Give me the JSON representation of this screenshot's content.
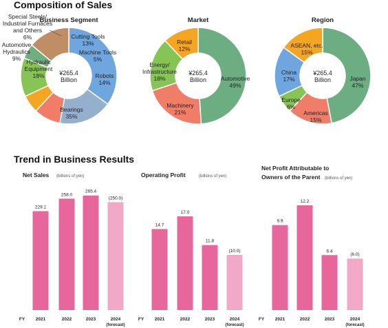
{
  "sections": {
    "composition": "Composition of Sales",
    "trend": "Trend in Business Results"
  },
  "center_label": {
    "value": "¥265.4",
    "unit": "Billion"
  },
  "fy_label": "FY",
  "chart_data": [
    {
      "type": "pie",
      "title": "Business Segment",
      "labels": [
        "Bearings",
        "Hydraulic Equipment",
        "Automotive Hydraulics",
        "Special Steels/ Industrial Furnaces and Others",
        "Cutting Tools",
        "Machine Tools",
        "Robots"
      ],
      "values": [
        35,
        18,
        9,
        6,
        13,
        5,
        14
      ],
      "colors": [
        "#6ea6dd",
        "#94b0cc",
        "#ef7d67",
        "#f4a623",
        "#86c455",
        "#6fae7e",
        "#c08e64"
      ]
    },
    {
      "type": "pie",
      "title": "Market",
      "labels": [
        "Automotive",
        "Machinery",
        "Energy/ Infrastructure",
        "Retail"
      ],
      "values": [
        49,
        21,
        18,
        12
      ],
      "colors": [
        "#6cae82",
        "#ef7d67",
        "#86c455",
        "#f4a623"
      ]
    },
    {
      "type": "pie",
      "title": "Region",
      "labels": [
        "Japan",
        "Americas",
        "Europe",
        "China",
        "ASEAN, etc."
      ],
      "values": [
        47,
        15,
        6,
        17,
        15
      ],
      "colors": [
        "#6cae82",
        "#ef7d67",
        "#86c455",
        "#6ea6dd",
        "#f4a623"
      ]
    },
    {
      "type": "bar",
      "title": "Net Sales",
      "unit": "(billions of yen)",
      "categories": [
        "2021",
        "2022",
        "2023",
        "2024"
      ],
      "category_notes": [
        "",
        "",
        "",
        "(forecast)"
      ],
      "values": [
        229.1,
        258.0,
        265.4,
        250.0
      ],
      "value_labels": [
        "229.1",
        "258.0",
        "265.4",
        "(250.0)"
      ],
      "colors": [
        "#e7669b",
        "#e7669b",
        "#e7669b",
        "#f2a9c7"
      ]
    },
    {
      "type": "bar",
      "title": "Operating Profit",
      "unit": "(billions of yen)",
      "categories": [
        "2021",
        "2022",
        "2023",
        "2024"
      ],
      "category_notes": [
        "",
        "",
        "",
        "(forecast)"
      ],
      "values": [
        14.7,
        17.0,
        11.8,
        10.0
      ],
      "value_labels": [
        "14.7",
        "17.0",
        "11.8",
        "(10.0)"
      ],
      "colors": [
        "#e7669b",
        "#e7669b",
        "#e7669b",
        "#f2a9c7"
      ]
    },
    {
      "type": "bar",
      "title": "Net Profit Attributable to Owners of the Parent",
      "title_lines": [
        "Net Profit Attributable to",
        "Owners of the Parent"
      ],
      "unit": "(billions of yen)",
      "categories": [
        "2021",
        "2022",
        "2023",
        "2024"
      ],
      "category_notes": [
        "",
        "",
        "",
        "(forecast)"
      ],
      "values": [
        9.9,
        12.2,
        6.4,
        6.0
      ],
      "value_labels": [
        "9.9",
        "12.2",
        "6.4",
        "(6.0)"
      ],
      "colors": [
        "#e7669b",
        "#e7669b",
        "#e7669b",
        "#f2a9c7"
      ]
    }
  ]
}
